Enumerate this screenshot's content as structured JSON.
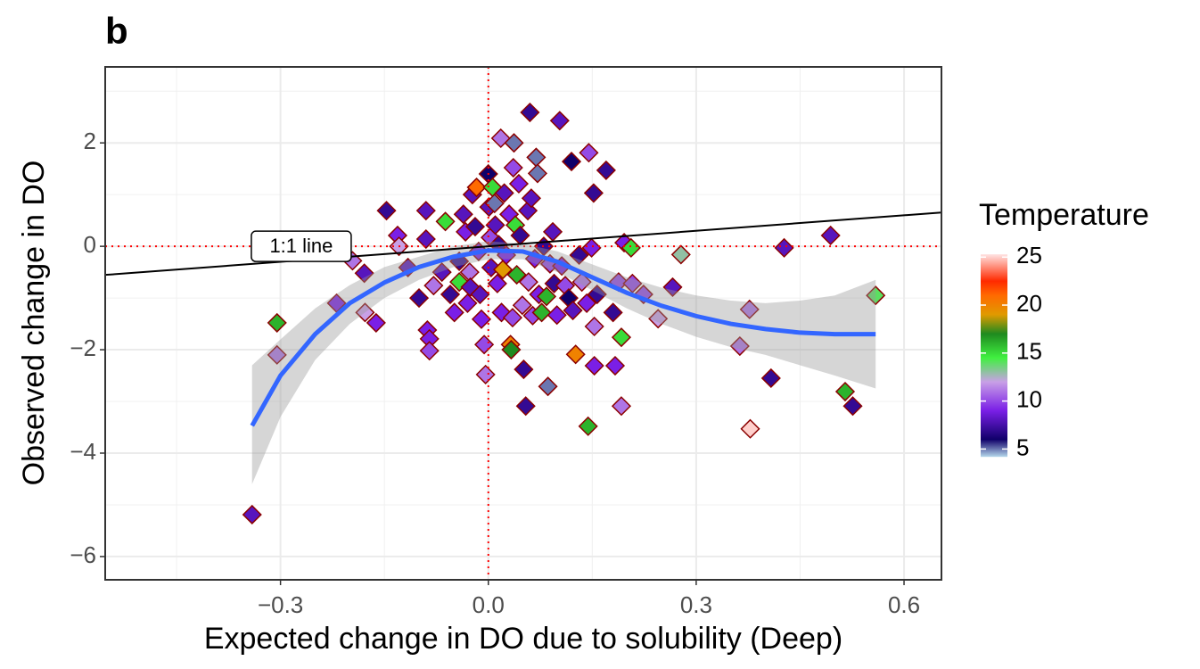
{
  "chart_data": {
    "type": "scatter",
    "title": "b",
    "xlabel": "Expected change in DO due to solubility (Deep)",
    "ylabel": "Observed change in DO",
    "xlim": [
      -0.553,
      0.654
    ],
    "ylim": [
      -6.45,
      3.47
    ],
    "xticks": [
      {
        "value": -0.3,
        "label": "−0.3"
      },
      {
        "value": 0,
        "label": "0.0"
      },
      {
        "value": 0.3,
        "label": "0.3"
      },
      {
        "value": 0.6,
        "label": "0.6"
      }
    ],
    "yticks": [
      {
        "value": -6,
        "label": "−6"
      },
      {
        "value": -4,
        "label": "−4"
      },
      {
        "value": -2,
        "label": "−2"
      },
      0,
      2
    ],
    "grid": true,
    "marker": "diamond",
    "edge_color": "#8b0000",
    "x": [
      -0.341,
      -0.305,
      -0.305,
      -0.219,
      -0.196,
      -0.179,
      -0.178,
      -0.162,
      -0.147,
      -0.131,
      -0.129,
      -0.116,
      -0.1,
      -0.09,
      -0.09,
      -0.088,
      -0.085,
      -0.085,
      -0.079,
      -0.067,
      -0.062,
      -0.055,
      -0.049,
      -0.042,
      -0.042,
      -0.036,
      -0.033,
      -0.03,
      -0.027,
      -0.026,
      -0.023,
      -0.019,
      -0.017,
      -0.014,
      -0.012,
      -0.01,
      -0.006,
      -0.004,
      0,
      0.001,
      0.003,
      0.004,
      0.006,
      0.009,
      0.01,
      0.013,
      0.015,
      0.018,
      0.019,
      0.021,
      0.023,
      0.026,
      0.03,
      0.032,
      0.033,
      0.035,
      0.036,
      0.037,
      0.039,
      0.041,
      0.044,
      0.046,
      0.049,
      0.051,
      0.054,
      0.057,
      0.058,
      0.06,
      0.062,
      0.064,
      0.067,
      0.069,
      0.071,
      0.073,
      0.077,
      0.08,
      0.084,
      0.086,
      0.089,
      0.093,
      0.095,
      0.099,
      0.103,
      0.106,
      0.111,
      0.116,
      0.12,
      0.122,
      0.126,
      0.131,
      0.135,
      0.142,
      0.144,
      0.145,
      0.149,
      0.152,
      0.153,
      0.153,
      0.157,
      0.17,
      0.18,
      0.183,
      0.188,
      0.192,
      0.192,
      0.196,
      0.206,
      0.208,
      0.224,
      0.245,
      0.266,
      0.278,
      0.363,
      0.378,
      0.377,
      0.408,
      0.427,
      0.494,
      0.515,
      0.526,
      0.559
    ],
    "y": [
      -5.19,
      -1.48,
      -2.1,
      -1.1,
      -0.28,
      -0.52,
      -1.28,
      -1.48,
      0.69,
      0.21,
      0,
      -0.41,
      -1,
      0.69,
      0.14,
      -1.62,
      -1.79,
      -2.02,
      -0.76,
      -0.5,
      0.48,
      -0.93,
      -1.28,
      -0.29,
      -0.69,
      0.62,
      0.28,
      -1.1,
      -0.5,
      -0.79,
      1,
      0.38,
      1.14,
      -0.1,
      -0.93,
      -1.41,
      -1.9,
      -2.48,
      1.4,
      0.76,
      0.17,
      -0.41,
      1.14,
      0.83,
      0.41,
      -0.72,
      0.03,
      2.09,
      -1.28,
      -0.45,
      1.03,
      -0.17,
      0.62,
      -1.9,
      -2,
      -1.38,
      1.52,
      2,
      0.41,
      -0.55,
      1.21,
      0.21,
      -1.14,
      -2.38,
      -3.09,
      0.69,
      -0.69,
      2.59,
      0.93,
      -1.34,
      -0.24,
      1.72,
      1.41,
      -0.93,
      -1.28,
      0,
      -0.97,
      -2.71,
      -0.34,
      0.28,
      -0.72,
      -1.33,
      2.43,
      -0.38,
      -0.76,
      -1,
      1.64,
      -1.24,
      -2.09,
      -0.17,
      -0.69,
      -1.1,
      -3.48,
      1.81,
      -0.03,
      1.03,
      -2.31,
      -1.55,
      -0.93,
      1.47,
      -1.28,
      -2.31,
      -0.69,
      -1.76,
      -3.09,
      0.07,
      -0.03,
      -0.72,
      -0.93,
      -1.4,
      -0.79,
      -0.16,
      -1.93,
      -3.53,
      -1.22,
      -2.55,
      -0.03,
      0.21,
      -2.81,
      -3.09,
      -0.95
    ],
    "color_values": [
      8,
      16,
      11,
      9,
      11,
      8,
      12,
      9,
      7,
      9,
      12,
      8,
      7,
      8,
      8,
      9,
      9,
      10,
      11,
      8,
      15,
      7,
      9,
      7,
      15,
      8,
      9,
      9,
      11,
      8,
      8,
      7,
      21,
      9,
      8,
      9,
      10,
      11,
      6,
      8,
      10,
      8,
      15,
      5,
      8,
      9,
      7,
      11,
      9,
      19,
      8,
      9,
      9,
      20,
      17,
      10,
      10,
      5,
      15,
      16,
      9,
      7,
      11,
      7,
      7,
      8,
      11,
      7,
      8,
      10,
      9,
      5,
      5,
      9,
      16,
      7,
      16,
      5,
      10,
      8,
      7,
      9,
      8,
      9,
      10,
      6,
      6,
      8,
      20,
      7,
      11,
      9,
      16,
      10,
      9,
      7,
      9,
      11,
      7,
      7,
      7,
      9,
      10,
      15,
      11,
      9,
      15,
      10,
      10,
      12,
      8,
      13,
      11,
      25,
      11,
      7,
      8,
      8,
      16,
      7,
      14
    ],
    "colorbar": {
      "title": "Temperature",
      "lim": [
        4.2,
        25.3
      ],
      "ticks": [
        5,
        10,
        15,
        20,
        25
      ],
      "stops": [
        [
          4.2,
          "#b3d6ea"
        ],
        [
          6,
          "#10006a"
        ],
        [
          9,
          "#7a1fe6"
        ],
        [
          12,
          "#c8a0e6"
        ],
        [
          14.5,
          "#40f040"
        ],
        [
          17,
          "#1f8a1f"
        ],
        [
          19,
          "#e09a00"
        ],
        [
          21,
          "#ff6a00"
        ],
        [
          22.5,
          "#ff2a00"
        ],
        [
          25.3,
          "#ffe4e4"
        ]
      ]
    },
    "ref_line": {
      "slope": 1,
      "intercept": 0,
      "label": "1:1 line",
      "label_x": -0.27,
      "label_y": 0
    },
    "hlines": [
      0
    ],
    "vlines": [
      0
    ],
    "ref_color": "#ff0000",
    "smooth": {
      "color": "#3366ff",
      "x": [
        -0.341,
        -0.3,
        -0.25,
        -0.2,
        -0.15,
        -0.1,
        -0.05,
        0,
        0.05,
        0.1,
        0.15,
        0.2,
        0.25,
        0.3,
        0.35,
        0.4,
        0.45,
        0.5,
        0.559
      ],
      "y": [
        -3.47,
        -2.5,
        -1.7,
        -1.1,
        -0.7,
        -0.4,
        -0.2,
        -0.08,
        -0.1,
        -0.3,
        -0.6,
        -0.9,
        -1.15,
        -1.35,
        -1.5,
        -1.6,
        -1.67,
        -1.7,
        -1.7
      ],
      "ymin": [
        -4.6,
        -3.3,
        -2.2,
        -1.5,
        -1,
        -0.65,
        -0.4,
        -0.25,
        -0.25,
        -0.5,
        -0.85,
        -1.2,
        -1.5,
        -1.75,
        -1.95,
        -2.1,
        -2.3,
        -2.5,
        -2.75
      ],
      "ymax": [
        -2.3,
        -1.8,
        -1.2,
        -0.75,
        -0.4,
        -0.2,
        0,
        0.1,
        0.05,
        -0.1,
        -0.35,
        -0.6,
        -0.8,
        -0.95,
        -1.05,
        -1.1,
        -1.05,
        -0.95,
        -0.65
      ]
    }
  }
}
